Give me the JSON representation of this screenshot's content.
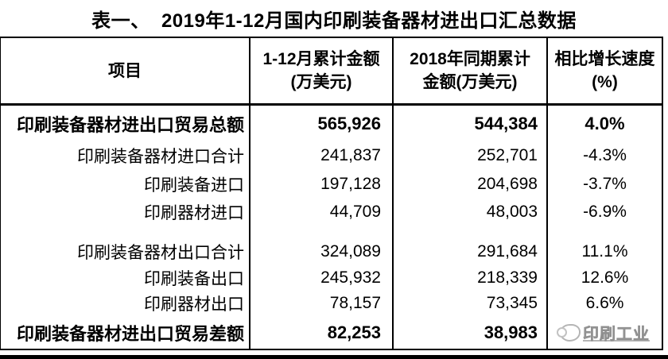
{
  "title": "表一、  2019年1-12月国内印刷装备器材进出口汇总数据",
  "table": {
    "headers": {
      "col1": "项目",
      "col2_line1": "1-12月累计金额",
      "col2_line2": "(万美元)",
      "col3_line1": "2018年同期累计",
      "col3_line2": "金额(万美元)",
      "col4_line1": "相比增长速度",
      "col4_line2": "(%)"
    },
    "rows": [
      {
        "label": "印刷装备器材进出口贸易总额",
        "v2019": "565,926",
        "v2018": "544,384",
        "growth": "4.0%"
      },
      {
        "label": "印刷装备器材进口合计",
        "v2019": "241,837",
        "v2018": "252,701",
        "growth": "-4.3%"
      },
      {
        "label": "印刷装备进口",
        "v2019": "197,128",
        "v2018": "204,698",
        "growth": "-3.7%"
      },
      {
        "label": "印刷器材进口",
        "v2019": "44,709",
        "v2018": "48,003",
        "growth": "-6.9%"
      },
      {
        "label": "印刷装备器材出口合计",
        "v2019": "324,089",
        "v2018": "291,684",
        "growth": "11.1%"
      },
      {
        "label": "印刷装备出口",
        "v2019": "245,932",
        "v2018": "218,339",
        "growth": "12.6%"
      },
      {
        "label": "印刷器材出口",
        "v2019": "78,157",
        "v2018": "73,345",
        "growth": "6.6%"
      },
      {
        "label": "印刷装备器材进出口贸易差额",
        "v2019": "82,253",
        "v2018": "38,983",
        "growth": ""
      }
    ]
  },
  "watermark": {
    "text": "印刷工业"
  },
  "colors": {
    "text": "#000000",
    "border": "#000000",
    "background": "#ffffff",
    "watermark": "#a0a0a0"
  },
  "chart_data": {
    "type": "table",
    "title": "表一、2019年1-12月国内印刷装备器材进出口汇总数据",
    "columns": [
      "项目",
      "1-12月累计金额(万美元)",
      "2018年同期累计金额(万美元)",
      "相比增长速度(%)"
    ],
    "rows": [
      {
        "项目": "印刷装备器材进出口贸易总额",
        "金额2019": 565926,
        "金额2018": 544384,
        "增长率": 4.0
      },
      {
        "项目": "印刷装备器材进口合计",
        "金额2019": 241837,
        "金额2018": 252701,
        "增长率": -4.3
      },
      {
        "项目": "印刷装备进口",
        "金额2019": 197128,
        "金额2018": 204698,
        "增长率": -3.7
      },
      {
        "项目": "印刷器材进口",
        "金额2019": 44709,
        "金额2018": 48003,
        "增长率": -6.9
      },
      {
        "项目": "印刷装备器材出口合计",
        "金额2019": 324089,
        "金额2018": 291684,
        "增长率": 11.1
      },
      {
        "项目": "印刷装备出口",
        "金额2019": 245932,
        "金额2018": 218339,
        "增长率": 12.6
      },
      {
        "项目": "印刷器材出口",
        "金额2019": 78157,
        "金额2018": 73345,
        "增长率": 6.6
      },
      {
        "项目": "印刷装备器材进出口贸易差额",
        "金额2019": 82253,
        "金额2018": 38983,
        "增长率": null
      }
    ]
  }
}
